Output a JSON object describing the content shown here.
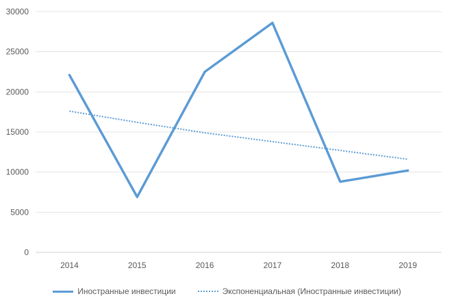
{
  "chart_data": {
    "type": "line",
    "title": "",
    "xlabel": "",
    "ylabel": "",
    "categories": [
      "2014",
      "2015",
      "2016",
      "2017",
      "2018",
      "2019"
    ],
    "ylim": [
      0,
      30000
    ],
    "yticks": [
      0,
      5000,
      10000,
      15000,
      20000,
      25000,
      30000
    ],
    "ytick_labels": [
      "0",
      "5000",
      "10000",
      "15000",
      "20000",
      "25000",
      "30000"
    ],
    "grid": "horizontal",
    "legend_position": "bottom",
    "series": [
      {
        "name": "Иностранные инвестиции",
        "values": [
          22100,
          6900,
          22500,
          28600,
          8800,
          10200
        ],
        "color": "#5B9BD5",
        "style": "solid"
      },
      {
        "name": "Экспоненциальная (Иностранные инвестиции)",
        "values": [
          17600,
          16200,
          14900,
          13800,
          12700,
          11600
        ],
        "color": "#5B9BD5",
        "style": "dotted"
      }
    ]
  }
}
